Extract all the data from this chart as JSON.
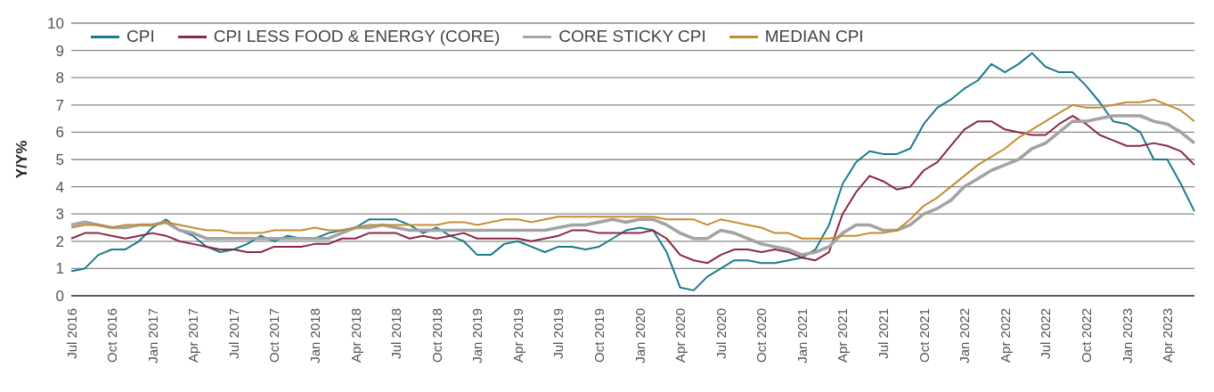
{
  "chart_data": {
    "type": "line",
    "ylabel": "Y/Y%",
    "categories": [
      "Jul 2016",
      null,
      null,
      "Oct 2016",
      null,
      null,
      "Jan 2017",
      null,
      null,
      "Apr 2017",
      null,
      null,
      "Jul 2017",
      null,
      null,
      "Oct 2017",
      null,
      null,
      "Jan 2018",
      null,
      null,
      "Apr 2018",
      null,
      null,
      "Jul 2018",
      null,
      null,
      "Oct 2018",
      null,
      null,
      "Jan 2019",
      null,
      null,
      "Apr 2019",
      null,
      null,
      "Jul 2019",
      null,
      null,
      "Oct 2019",
      null,
      null,
      "Jan 2020",
      null,
      null,
      "Apr 2020",
      null,
      null,
      "Jul 2020",
      null,
      null,
      "Oct 2020",
      null,
      null,
      "Jan 2021",
      null,
      null,
      "Apr 2021",
      null,
      null,
      "Jul 2021",
      null,
      null,
      "Oct 2021",
      null,
      null,
      "Jan 2022",
      null,
      null,
      "Apr 2022",
      null,
      null,
      "Jul 2022",
      null,
      null,
      "Oct 2022",
      null,
      null,
      "Jan 2023",
      null,
      null,
      "Apr 2023",
      null,
      null
    ],
    "series": [
      {
        "name": "CPI",
        "color": "#1a7b8c",
        "values": [
          0.9,
          1.0,
          1.5,
          1.7,
          1.7,
          2.0,
          2.5,
          2.8,
          2.4,
          2.2,
          1.8,
          1.6,
          1.7,
          1.9,
          2.2,
          2.0,
          2.2,
          2.1,
          2.1,
          2.3,
          2.4,
          2.5,
          2.8,
          2.8,
          2.8,
          2.6,
          2.3,
          2.5,
          2.2,
          2.0,
          1.5,
          1.5,
          1.9,
          2.0,
          1.8,
          1.6,
          1.8,
          1.8,
          1.7,
          1.8,
          2.1,
          2.4,
          2.5,
          2.4,
          1.6,
          0.3,
          0.2,
          0.7,
          1.0,
          1.3,
          1.3,
          1.2,
          1.2,
          1.3,
          1.4,
          1.7,
          2.6,
          4.1,
          4.9,
          5.3,
          5.2,
          5.2,
          5.4,
          6.3,
          6.9,
          7.2,
          7.6,
          7.9,
          8.5,
          8.2,
          8.5,
          8.9,
          8.4,
          8.2,
          8.2,
          7.7,
          7.1,
          6.4,
          6.3,
          6.0,
          5.0,
          5.0,
          4.1,
          3.1
        ]
      },
      {
        "name": "CPI LESS FOOD & ENERGY (CORE)",
        "color": "#8c2747",
        "values": [
          2.1,
          2.3,
          2.3,
          2.2,
          2.1,
          2.2,
          2.3,
          2.2,
          2.0,
          1.9,
          1.8,
          1.7,
          1.7,
          1.6,
          1.6,
          1.8,
          1.8,
          1.8,
          1.9,
          1.9,
          2.1,
          2.1,
          2.3,
          2.3,
          2.3,
          2.1,
          2.2,
          2.1,
          2.2,
          2.3,
          2.1,
          2.1,
          2.1,
          2.1,
          2.0,
          2.1,
          2.2,
          2.4,
          2.4,
          2.3,
          2.3,
          2.3,
          2.3,
          2.4,
          2.1,
          1.5,
          1.3,
          1.2,
          1.5,
          1.7,
          1.7,
          1.6,
          1.7,
          1.6,
          1.4,
          1.3,
          1.6,
          3.0,
          3.8,
          4.4,
          4.2,
          3.9,
          4.0,
          4.6,
          4.9,
          5.5,
          6.1,
          6.4,
          6.4,
          6.1,
          6.0,
          5.9,
          5.9,
          6.3,
          6.6,
          6.3,
          5.9,
          5.7,
          5.5,
          5.5,
          5.6,
          5.5,
          5.3,
          4.8
        ]
      },
      {
        "name": "CORE STICKY CPI",
        "color": "#a3a3a3",
        "values": [
          2.6,
          2.7,
          2.6,
          2.5,
          2.5,
          2.6,
          2.6,
          2.7,
          2.4,
          2.3,
          2.1,
          2.1,
          2.1,
          2.1,
          2.1,
          2.1,
          2.1,
          2.1,
          2.1,
          2.1,
          2.3,
          2.5,
          2.5,
          2.6,
          2.5,
          2.4,
          2.4,
          2.4,
          2.4,
          2.4,
          2.4,
          2.4,
          2.4,
          2.4,
          2.4,
          2.4,
          2.5,
          2.6,
          2.6,
          2.7,
          2.8,
          2.7,
          2.8,
          2.8,
          2.6,
          2.3,
          2.1,
          2.1,
          2.4,
          2.3,
          2.1,
          1.9,
          1.8,
          1.7,
          1.5,
          1.6,
          1.8,
          2.3,
          2.6,
          2.6,
          2.4,
          2.4,
          2.6,
          3.0,
          3.2,
          3.5,
          4.0,
          4.3,
          4.6,
          4.8,
          5.0,
          5.4,
          5.6,
          6.0,
          6.4,
          6.4,
          6.5,
          6.6,
          6.6,
          6.6,
          6.4,
          6.3,
          6.0,
          5.6
        ]
      },
      {
        "name": "MEDIAN CPI",
        "color": "#c38d2f",
        "values": [
          2.5,
          2.6,
          2.6,
          2.5,
          2.6,
          2.6,
          2.6,
          2.7,
          2.6,
          2.5,
          2.4,
          2.4,
          2.3,
          2.3,
          2.3,
          2.4,
          2.4,
          2.4,
          2.5,
          2.4,
          2.4,
          2.5,
          2.6,
          2.6,
          2.6,
          2.6,
          2.6,
          2.6,
          2.7,
          2.7,
          2.6,
          2.7,
          2.8,
          2.8,
          2.7,
          2.8,
          2.9,
          2.9,
          2.9,
          2.9,
          2.9,
          2.9,
          2.9,
          2.9,
          2.8,
          2.8,
          2.8,
          2.6,
          2.8,
          2.7,
          2.6,
          2.5,
          2.3,
          2.3,
          2.1,
          2.1,
          2.1,
          2.2,
          2.2,
          2.3,
          2.3,
          2.4,
          2.8,
          3.3,
          3.6,
          4.0,
          4.4,
          4.8,
          5.1,
          5.4,
          5.8,
          6.1,
          6.4,
          6.7,
          7.0,
          6.9,
          6.9,
          7.0,
          7.1,
          7.1,
          7.2,
          7.0,
          6.8,
          6.4
        ]
      }
    ],
    "ylim": [
      0,
      10
    ],
    "yticks": [
      0,
      1,
      2,
      3,
      4,
      5,
      6,
      7,
      8,
      9,
      10
    ],
    "grid": "y",
    "legend": "top left",
    "marker": "none",
    "line_style": "solid"
  }
}
